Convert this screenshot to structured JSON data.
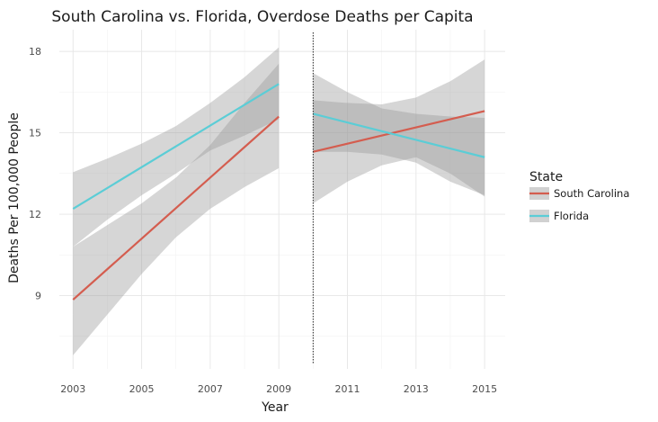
{
  "chart_data": {
    "type": "line",
    "title": "South Carolina vs. Florida, Overdose Deaths per Capita",
    "xlabel": "Year",
    "ylabel": "Deaths Per 100,000 People",
    "xlim": [
      2002.6,
      2015.6
    ],
    "ylim": [
      6.3,
      18.8
    ],
    "x_ticks": [
      2003,
      2005,
      2007,
      2009,
      2011,
      2013,
      2015
    ],
    "y_ticks": [
      9,
      12,
      15,
      18
    ],
    "grid": true,
    "breakpoint": 2010,
    "legend": {
      "title": "State",
      "position": "right"
    },
    "series": [
      {
        "name": "South Carolina",
        "color": "#D45D4F",
        "segments": [
          {
            "x": [
              2003,
              2009
            ],
            "y": [
              8.85,
              15.6
            ],
            "band_x": [
              2003,
              2004,
              2005,
              2006,
              2007,
              2008,
              2009
            ],
            "band_lower": [
              6.8,
              8.3,
              9.8,
              11.15,
              12.2,
              13.0,
              13.7
            ],
            "band_upper": [
              10.8,
              11.6,
              12.4,
              13.35,
              14.55,
              16.1,
              17.55
            ]
          },
          {
            "x": [
              2010,
              2015
            ],
            "y": [
              14.3,
              15.8
            ],
            "band_x": [
              2010,
              2011,
              2012,
              2013,
              2014,
              2015
            ],
            "band_lower": [
              12.4,
              13.2,
              13.8,
              14.1,
              13.5,
              12.65
            ],
            "band_upper": [
              16.2,
              16.1,
              16.05,
              16.3,
              16.9,
              17.7
            ]
          }
        ]
      },
      {
        "name": "Florida",
        "color": "#5BCDD6",
        "segments": [
          {
            "x": [
              2003,
              2009
            ],
            "y": [
              12.2,
              16.8
            ],
            "band_x": [
              2003,
              2004,
              2005,
              2006,
              2007,
              2008,
              2009
            ],
            "band_lower": [
              10.8,
              11.8,
              12.7,
              13.5,
              14.35,
              14.9,
              15.5
            ],
            "band_upper": [
              13.55,
              14.05,
              14.6,
              15.25,
              16.1,
              17.05,
              18.15
            ]
          },
          {
            "x": [
              2010,
              2015
            ],
            "y": [
              15.7,
              14.1
            ],
            "band_x": [
              2010,
              2011,
              2012,
              2013,
              2014,
              2015
            ],
            "band_lower": [
              14.3,
              14.3,
              14.2,
              13.9,
              13.2,
              12.7
            ],
            "band_upper": [
              17.2,
              16.5,
              15.9,
              15.7,
              15.6,
              15.55
            ]
          }
        ]
      }
    ]
  }
}
